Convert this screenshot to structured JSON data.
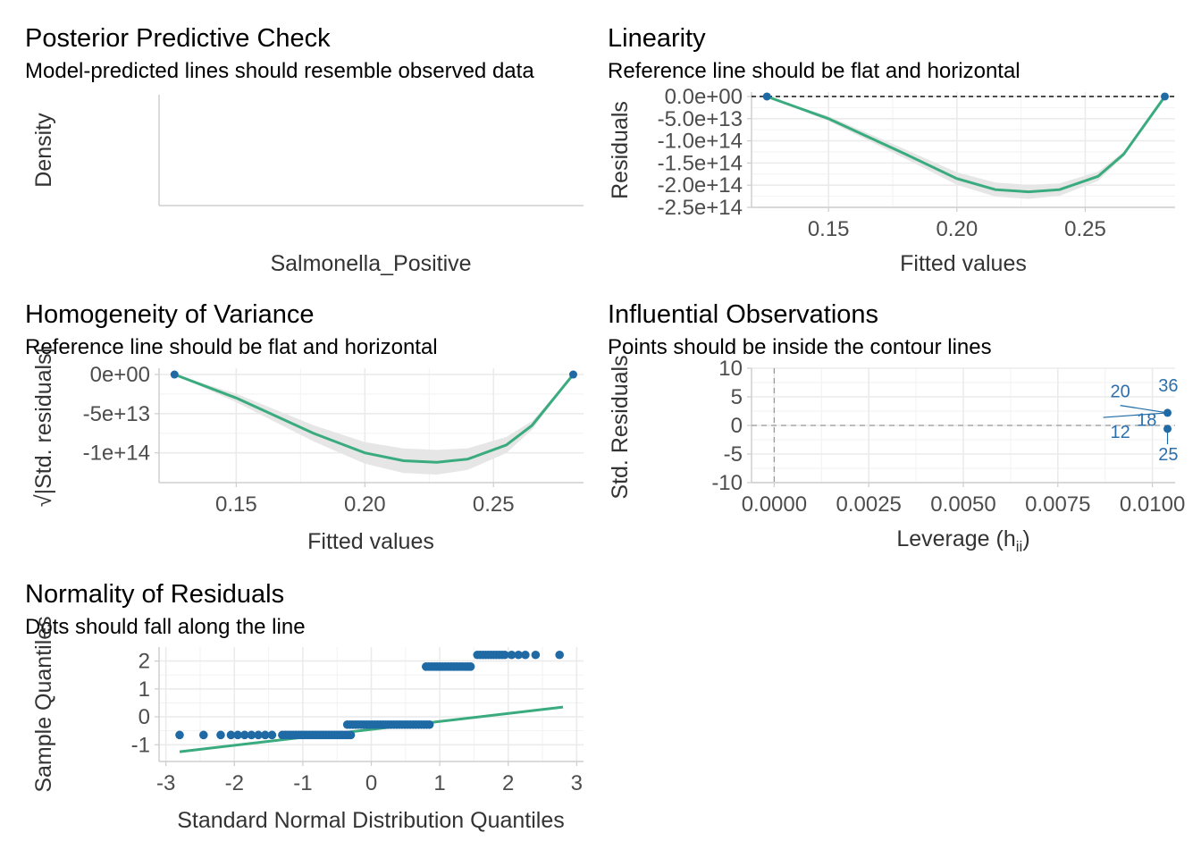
{
  "colors": {
    "point": "#1f6aa5",
    "line": "#3aab7e",
    "band": "#e6e6e6",
    "grid": "#ebebeb",
    "ref": "#000000"
  },
  "chart_data": [
    {
      "id": "ppc",
      "type": "line",
      "title": "Posterior Predictive Check",
      "subtitle": "Model-predicted lines should resemble observed data",
      "xlabel": "Salmonella_Positive",
      "ylabel": "Density",
      "series": []
    },
    {
      "id": "linearity",
      "type": "scatter",
      "title": "Linearity",
      "subtitle": "Reference line should be flat and horizontal",
      "xlabel": "Fitted values",
      "ylabel": "Residuals",
      "xlim": [
        0.12,
        0.285
      ],
      "ylim": [
        -250000000000000.0,
        10000000000000.0
      ],
      "xticks": [
        0.15,
        0.2,
        0.25
      ],
      "xtick_labels": [
        "0.15",
        "0.20",
        "0.25"
      ],
      "yticks": [
        0,
        -50000000000000.0,
        -100000000000000.0,
        -150000000000000.0,
        -200000000000000.0,
        -250000000000000.0
      ],
      "ytick_labels": [
        "0.0e+00",
        "-5.0e+13",
        "-1.0e+14",
        "-1.5e+14",
        "-2.0e+14",
        "-2.5e+14"
      ],
      "reference_y": 0,
      "points": [
        [
          0.126,
          0
        ],
        [
          0.281,
          0
        ]
      ],
      "smooth": [
        [
          0.126,
          0
        ],
        [
          0.15,
          -50000000000000.0
        ],
        [
          0.18,
          -130000000000000.0
        ],
        [
          0.2,
          -185000000000000.0
        ],
        [
          0.215,
          -210000000000000.0
        ],
        [
          0.228,
          -215000000000000.0
        ],
        [
          0.24,
          -210000000000000.0
        ],
        [
          0.255,
          -180000000000000.0
        ],
        [
          0.265,
          -130000000000000.0
        ],
        [
          0.281,
          0
        ]
      ]
    },
    {
      "id": "homogeneity",
      "type": "scatter",
      "title": "Homogeneity of Variance",
      "subtitle": "Reference line should be flat and horizontal",
      "xlabel": "Fitted values",
      "ylabel": "√|Std. residuals|",
      "xlim": [
        0.12,
        0.285
      ],
      "ylim": [
        -138000000000000.0,
        8000000000000.0
      ],
      "xticks": [
        0.15,
        0.2,
        0.25
      ],
      "xtick_labels": [
        "0.15",
        "0.20",
        "0.25"
      ],
      "yticks": [
        0,
        -50000000000000.0,
        -100000000000000.0
      ],
      "ytick_labels": [
        "0e+00",
        "-5e+13",
        "-1e+14"
      ],
      "points": [
        [
          0.126,
          0
        ],
        [
          0.281,
          0
        ]
      ],
      "smooth": [
        [
          0.126,
          0
        ],
        [
          0.15,
          -30000000000000.0
        ],
        [
          0.18,
          -75000000000000.0
        ],
        [
          0.2,
          -100000000000000.0
        ],
        [
          0.215,
          -110000000000000.0
        ],
        [
          0.228,
          -112000000000000.0
        ],
        [
          0.24,
          -108000000000000.0
        ],
        [
          0.255,
          -90000000000000.0
        ],
        [
          0.265,
          -65000000000000.0
        ],
        [
          0.281,
          0
        ]
      ]
    },
    {
      "id": "influential",
      "type": "scatter",
      "title": "Influential Observations",
      "subtitle": "Points should be inside the contour lines",
      "xlabel": "Leverage (h",
      "xlabel_sub": "ii",
      "xlabel_end": ")",
      "ylabel": "Std. Residuals",
      "xlim": [
        -0.0006,
        0.0106
      ],
      "ylim": [
        -10,
        10
      ],
      "xticks": [
        0,
        0.0025,
        0.005,
        0.0075,
        0.01
      ],
      "xtick_labels": [
        "0.0000",
        "0.0025",
        "0.0050",
        "0.0075",
        "0.0100"
      ],
      "yticks": [
        10,
        5,
        0,
        -5,
        -10
      ],
      "ytick_labels": [
        "10",
        "5",
        "0",
        "-5",
        "-10"
      ],
      "points": [
        [
          0.0104,
          2.2
        ],
        [
          0.0104,
          -0.6
        ]
      ],
      "labels": [
        {
          "text": "36",
          "x": 0.01042,
          "y": 7.0
        },
        {
          "text": "20",
          "x": 0.00915,
          "y": 6.0
        },
        {
          "text": "18",
          "x": 0.00985,
          "y": 1.0
        },
        {
          "text": "12",
          "x": 0.00915,
          "y": -1.1
        },
        {
          "text": "25",
          "x": 0.01042,
          "y": -5.0
        }
      ]
    },
    {
      "id": "normality",
      "type": "scatter",
      "title": "Normality of Residuals",
      "subtitle": "Dots should fall along the line",
      "xlabel": "Standard Normal Distribution Quantiles",
      "ylabel": "Sample Quantiles",
      "xlim": [
        -3.1,
        3.1
      ],
      "ylim": [
        -1.6,
        2.5
      ],
      "xticks": [
        -3,
        -2,
        -1,
        0,
        1,
        2,
        3
      ],
      "xtick_labels": [
        "-3",
        "-2",
        "-1",
        "0",
        "1",
        "2",
        "3"
      ],
      "yticks": [
        2,
        1,
        0,
        -1
      ],
      "ytick_labels": [
        "2",
        "1",
        "0",
        "-1"
      ],
      "line": [
        [
          -2.8,
          -1.25
        ],
        [
          2.8,
          0.35
        ]
      ],
      "point_groups": [
        {
          "y": -0.65,
          "x_from": -1.3,
          "x_to": -0.3,
          "extra_x": [
            -2.8,
            -2.45,
            -2.2,
            -2.05,
            -1.95,
            -1.85,
            -1.75,
            -1.65,
            -1.55,
            -1.45
          ]
        },
        {
          "y": -0.28,
          "x_from": -0.35,
          "x_to": 0.85,
          "extra_x": []
        },
        {
          "y": 1.8,
          "x_from": 0.8,
          "x_to": 1.45,
          "extra_x": []
        },
        {
          "y": 2.22,
          "x_from": 1.55,
          "x_to": 1.95,
          "extra_x": [
            2.05,
            2.15,
            2.25,
            2.4,
            2.75
          ]
        }
      ]
    }
  ]
}
